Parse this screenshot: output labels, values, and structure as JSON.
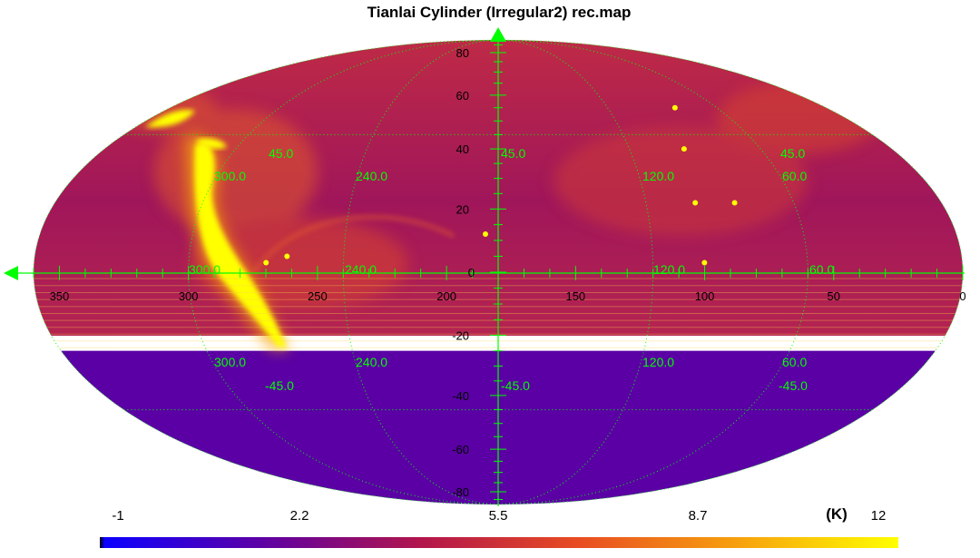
{
  "title": "Tianlai Cylinder (Irregular2) rec.map",
  "colorbar": {
    "unit": "(K)",
    "ticks": [
      "-1",
      "2.2",
      "5.5",
      "8.7",
      "12"
    ],
    "tick_values": [
      -1,
      2.2,
      5.5,
      8.7,
      12
    ],
    "range": [
      -1,
      12
    ],
    "stops": [
      "#000000",
      "#0c00ff",
      "#5c00a6",
      "#b1154c",
      "#e84d22",
      "#f7a10e",
      "#ffff00"
    ]
  },
  "map": {
    "projection": "mollweide",
    "axis_color": "#00ff00",
    "ra_labels": [
      "350",
      "300",
      "250",
      "200",
      "150",
      "100",
      "50",
      "0"
    ],
    "ra_label_values": [
      350,
      300,
      250,
      200,
      150,
      100,
      50,
      0
    ],
    "dec_labels": [
      "80",
      "60",
      "40",
      "20",
      "0",
      "-20",
      "-40",
      "-60",
      "-80"
    ],
    "dec_label_values": [
      80,
      60,
      40,
      20,
      0,
      -20,
      -40,
      -60,
      -80
    ],
    "grid_labels": {
      "upper_lat": [
        "45.0",
        "45.0",
        "45.0"
      ],
      "upper_lon": [
        "300.0",
        "240.0",
        "120.0",
        "60.0"
      ],
      "equator_lon": [
        "300.0",
        "240.0",
        "120.0",
        "60.0"
      ],
      "lower_lon": [
        "300.0",
        "240.0",
        "120.0",
        "60.0"
      ],
      "lower_lat": [
        "-45.0",
        "-45.0",
        "-45.0"
      ]
    },
    "sky": {
      "north_color": "#b5204c",
      "south_color": "#5a00a4",
      "dec_cutoff": -25,
      "galactic_plane_color": "#ffff00",
      "bright_sources": [
        {
          "ra": 185,
          "dec": 12
        },
        {
          "ra": 262,
          "dec": 5
        },
        {
          "ra": 270,
          "dec": 3
        },
        {
          "ra": 84,
          "dec": 22
        },
        {
          "ra": 100,
          "dec": 22
        },
        {
          "ra": 83,
          "dec": 55
        },
        {
          "ra": 100,
          "dec": 3
        },
        {
          "ra": 95,
          "dec": 40
        }
      ]
    }
  }
}
